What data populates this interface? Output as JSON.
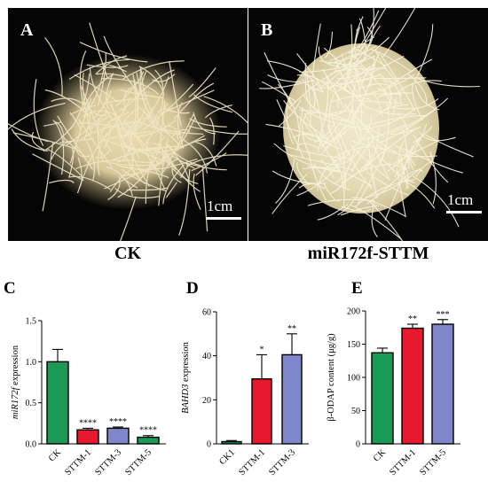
{
  "panels": {
    "A": {
      "label": "A",
      "caption": "CK",
      "scale": "1cm"
    },
    "B": {
      "label": "B",
      "caption": "miR172f-STTM",
      "scale": "1cm"
    }
  },
  "colors": {
    "green": "#1a9a55",
    "red": "#e8182e",
    "purple": "#7f86c9",
    "edge": "#000000"
  },
  "chart_data": [
    {
      "type": "bar",
      "panel_label": "C",
      "categories": [
        "CK",
        "STTM-1",
        "STTM-3",
        "STTM-5"
      ],
      "values": [
        1.0,
        0.17,
        0.19,
        0.08
      ],
      "errors": [
        0.15,
        0.02,
        0.015,
        0.02
      ],
      "colors": [
        "#1a9a55",
        "#e8182e",
        "#7f86c9",
        "#1a9a55"
      ],
      "significance": [
        "",
        "****",
        "****",
        "****"
      ],
      "ylabel_italic": "miR172f",
      "ylabel_rest": " expression",
      "ylim": [
        0,
        1.5
      ],
      "yticks": [
        "0.0",
        "0.5",
        "1.0",
        "1.5"
      ]
    },
    {
      "type": "bar",
      "panel_label": "D",
      "categories": [
        "CK1",
        "STTM-1",
        "STTM-3"
      ],
      "values": [
        1.0,
        29.5,
        40.5
      ],
      "errors": [
        0.5,
        11.0,
        9.5
      ],
      "colors": [
        "#1a9a55",
        "#e8182e",
        "#7f86c9"
      ],
      "significance": [
        "",
        "*",
        "**"
      ],
      "ylabel_italic": "BAHD3",
      "ylabel_rest": " expression",
      "ylim": [
        0,
        60
      ],
      "yticks": [
        "0",
        "20",
        "40",
        "60"
      ]
    },
    {
      "type": "bar",
      "panel_label": "E",
      "categories": [
        "CK",
        "STTM-1",
        "STTM-5"
      ],
      "values": [
        137,
        174,
        180
      ],
      "errors": [
        7,
        6,
        7
      ],
      "colors": [
        "#1a9a55",
        "#e8182e",
        "#7f86c9"
      ],
      "significance": [
        "",
        "**",
        "***"
      ],
      "ylabel_italic": "",
      "ylabel_rest": "β-ODAP content (μg/g)",
      "ylim": [
        0,
        200
      ],
      "yticks": [
        "0",
        "50",
        "100",
        "150",
        "200"
      ]
    }
  ]
}
